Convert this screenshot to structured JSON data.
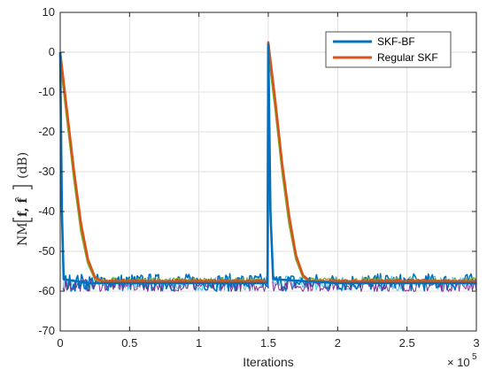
{
  "chart_data": {
    "type": "line",
    "xlabel": "Iterations",
    "ylabel_main": "NM",
    "ylabel_args": "f, f̂",
    "ylabel_unit": "(dB)",
    "x_multiplier_base": "× 10",
    "x_multiplier_exp": "5",
    "xlim": [
      0,
      3
    ],
    "ylim": [
      -70,
      10
    ],
    "x_ticks": [
      0,
      0.5,
      1,
      1.5,
      2,
      2.5,
      3
    ],
    "x_tick_labels": [
      "0",
      "0.5",
      "1",
      "1.5",
      "2",
      "2.5",
      "3"
    ],
    "y_ticks": [
      10,
      0,
      -10,
      -20,
      -30,
      -40,
      -50,
      -60,
      -70
    ],
    "y_tick_labels": [
      "10",
      "0",
      "-10",
      "-20",
      "-30",
      "-40",
      "-50",
      "-60",
      "-70"
    ],
    "grid": true,
    "legend_position": "top-right",
    "series": [
      {
        "name": "SKF-BF",
        "color": "#0072BD",
        "points": [
          [
            0,
            0
          ],
          [
            0.012,
            -40
          ],
          [
            0.025,
            -57
          ],
          [
            0.2,
            -58
          ],
          [
            0.5,
            -58
          ],
          [
            1.0,
            -58
          ],
          [
            1.495,
            -58
          ],
          [
            1.5,
            2
          ],
          [
            1.515,
            -40
          ],
          [
            1.535,
            -57
          ],
          [
            2.0,
            -58
          ],
          [
            2.5,
            -58
          ],
          [
            3.0,
            -58
          ]
        ]
      },
      {
        "name": "Regular SKF",
        "color": "#D95319",
        "points": [
          [
            0,
            0
          ],
          [
            0.05,
            -15
          ],
          [
            0.1,
            -30
          ],
          [
            0.15,
            -43
          ],
          [
            0.2,
            -52
          ],
          [
            0.25,
            -56.5
          ],
          [
            0.3,
            -57.5
          ],
          [
            1.0,
            -57.5
          ],
          [
            1.495,
            -57.5
          ],
          [
            1.5,
            2.5
          ],
          [
            1.55,
            -12
          ],
          [
            1.6,
            -28
          ],
          [
            1.65,
            -41
          ],
          [
            1.7,
            -51
          ],
          [
            1.75,
            -56
          ],
          [
            1.8,
            -57.5
          ],
          [
            2.5,
            -57.5
          ],
          [
            3.0,
            -57.5
          ]
        ]
      }
    ]
  }
}
